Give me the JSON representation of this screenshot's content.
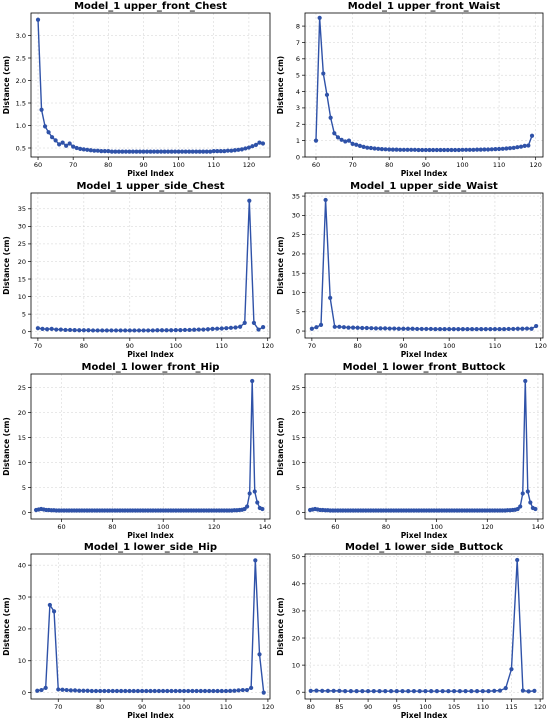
{
  "chart_data": [
    {
      "type": "line",
      "title": "Model_1 upper_front_Chest",
      "xlabel": "Pixel Index",
      "ylabel": "Distance (cm)",
      "xlim": [
        58,
        126
      ],
      "ylim": [
        0.3,
        3.5
      ],
      "xticks": [
        60,
        70,
        80,
        90,
        100,
        110,
        120
      ],
      "yticks": [
        0.5,
        1.0,
        1.5,
        2.0,
        2.5,
        3.0
      ],
      "ytick_labels": [
        "0.5",
        "1.0",
        "1.5",
        "2.0",
        "2.5",
        "3.0"
      ],
      "grid": true,
      "x": [
        60,
        61,
        62,
        63,
        64,
        65,
        66,
        67,
        68,
        69,
        70,
        71,
        72,
        73,
        74,
        75,
        76,
        77,
        78,
        79,
        80,
        81,
        82,
        83,
        84,
        85,
        86,
        87,
        88,
        89,
        90,
        91,
        92,
        93,
        94,
        95,
        96,
        97,
        98,
        99,
        100,
        101,
        102,
        103,
        104,
        105,
        106,
        107,
        108,
        109,
        110,
        111,
        112,
        113,
        114,
        115,
        116,
        117,
        118,
        119,
        120,
        121,
        122,
        123,
        124
      ],
      "y": [
        3.35,
        1.35,
        0.98,
        0.85,
        0.74,
        0.67,
        0.58,
        0.62,
        0.55,
        0.6,
        0.53,
        0.5,
        0.48,
        0.47,
        0.46,
        0.45,
        0.44,
        0.44,
        0.43,
        0.43,
        0.43,
        0.42,
        0.42,
        0.42,
        0.42,
        0.42,
        0.42,
        0.42,
        0.42,
        0.42,
        0.42,
        0.42,
        0.42,
        0.42,
        0.42,
        0.42,
        0.42,
        0.42,
        0.42,
        0.42,
        0.42,
        0.42,
        0.42,
        0.42,
        0.42,
        0.42,
        0.42,
        0.42,
        0.42,
        0.42,
        0.43,
        0.43,
        0.43,
        0.43,
        0.44,
        0.44,
        0.45,
        0.46,
        0.47,
        0.49,
        0.51,
        0.54,
        0.57,
        0.62,
        0.6
      ]
    },
    {
      "type": "line",
      "title": "Model_1 upper_front_Waist",
      "xlabel": "Pixel Index",
      "ylabel": "Distance (cm)",
      "xlim": [
        57,
        122
      ],
      "ylim": [
        0,
        8.8
      ],
      "xticks": [
        60,
        70,
        80,
        90,
        100,
        110,
        120
      ],
      "yticks": [
        0,
        1,
        2,
        3,
        4,
        5,
        6,
        7,
        8
      ],
      "ytick_labels": [
        "0",
        "1",
        "2",
        "3",
        "4",
        "5",
        "6",
        "7",
        "8"
      ],
      "grid": true,
      "x": [
        60,
        61,
        62,
        63,
        64,
        65,
        66,
        67,
        68,
        69,
        70,
        71,
        72,
        73,
        74,
        75,
        76,
        77,
        78,
        79,
        80,
        81,
        82,
        83,
        84,
        85,
        86,
        87,
        88,
        89,
        90,
        91,
        92,
        93,
        94,
        95,
        96,
        97,
        98,
        99,
        100,
        101,
        102,
        103,
        104,
        105,
        106,
        107,
        108,
        109,
        110,
        111,
        112,
        113,
        114,
        115,
        116,
        117,
        118,
        119
      ],
      "y": [
        1.0,
        8.5,
        5.1,
        3.8,
        2.4,
        1.45,
        1.2,
        1.05,
        0.95,
        1.0,
        0.8,
        0.75,
        0.68,
        0.62,
        0.57,
        0.55,
        0.52,
        0.5,
        0.48,
        0.47,
        0.46,
        0.45,
        0.45,
        0.44,
        0.44,
        0.44,
        0.44,
        0.44,
        0.43,
        0.43,
        0.43,
        0.43,
        0.43,
        0.43,
        0.43,
        0.43,
        0.43,
        0.43,
        0.43,
        0.43,
        0.44,
        0.44,
        0.44,
        0.44,
        0.45,
        0.45,
        0.46,
        0.46,
        0.47,
        0.48,
        0.49,
        0.5,
        0.52,
        0.54,
        0.56,
        0.6,
        0.63,
        0.68,
        0.7,
        1.3
      ]
    },
    {
      "type": "line",
      "title": "Model_1 upper_side_Chest",
      "xlabel": "Pixel Index",
      "ylabel": "Distance (cm)",
      "xlim": [
        68.5,
        120.5
      ],
      "ylim": [
        -1.8,
        39.5
      ],
      "xticks": [
        70,
        80,
        90,
        100,
        110,
        120
      ],
      "yticks": [
        0,
        5,
        10,
        15,
        20,
        25,
        30,
        35
      ],
      "ytick_labels": [
        "0",
        "5",
        "10",
        "15",
        "20",
        "25",
        "30",
        "35"
      ],
      "grid": true,
      "x": [
        70,
        71,
        72,
        73,
        74,
        75,
        76,
        77,
        78,
        79,
        80,
        81,
        82,
        83,
        84,
        85,
        86,
        87,
        88,
        89,
        90,
        91,
        92,
        93,
        94,
        95,
        96,
        97,
        98,
        99,
        100,
        101,
        102,
        103,
        104,
        105,
        106,
        107,
        108,
        109,
        110,
        111,
        112,
        113,
        114,
        115,
        116,
        117,
        118,
        119
      ],
      "y": [
        1.0,
        0.8,
        0.7,
        0.8,
        0.6,
        0.6,
        0.5,
        0.5,
        0.45,
        0.4,
        0.4,
        0.4,
        0.35,
        0.35,
        0.35,
        0.35,
        0.35,
        0.35,
        0.35,
        0.35,
        0.35,
        0.35,
        0.35,
        0.35,
        0.35,
        0.35,
        0.4,
        0.4,
        0.4,
        0.4,
        0.45,
        0.45,
        0.5,
        0.5,
        0.55,
        0.6,
        0.6,
        0.7,
        0.8,
        0.85,
        0.9,
        1.0,
        1.1,
        1.2,
        1.4,
        2.5,
        37.3,
        2.5,
        0.6,
        1.3
      ]
    },
    {
      "type": "line",
      "title": "Model_1 upper_side_Waist",
      "xlabel": "Pixel Index",
      "ylabel": "Distance (cm)",
      "xlim": [
        68.5,
        120.5
      ],
      "ylim": [
        -1.8,
        35.8
      ],
      "xticks": [
        70,
        80,
        90,
        100,
        110,
        120
      ],
      "yticks": [
        0,
        5,
        10,
        15,
        20,
        25,
        30,
        35
      ],
      "ytick_labels": [
        "0",
        "5",
        "10",
        "15",
        "20",
        "25",
        "30",
        "35"
      ],
      "grid": true,
      "x": [
        70,
        71,
        72,
        73,
        74,
        75,
        76,
        77,
        78,
        79,
        80,
        81,
        82,
        83,
        84,
        85,
        86,
        87,
        88,
        89,
        90,
        91,
        92,
        93,
        94,
        95,
        96,
        97,
        98,
        99,
        100,
        101,
        102,
        103,
        104,
        105,
        106,
        107,
        108,
        109,
        110,
        111,
        112,
        113,
        114,
        115,
        116,
        117,
        118,
        119
      ],
      "y": [
        0.6,
        1.0,
        1.6,
        34.0,
        8.6,
        1.1,
        1.1,
        1.0,
        0.9,
        0.9,
        0.85,
        0.8,
        0.8,
        0.75,
        0.7,
        0.7,
        0.7,
        0.65,
        0.65,
        0.6,
        0.6,
        0.6,
        0.6,
        0.55,
        0.55,
        0.55,
        0.55,
        0.5,
        0.5,
        0.5,
        0.5,
        0.5,
        0.5,
        0.5,
        0.5,
        0.5,
        0.5,
        0.5,
        0.5,
        0.5,
        0.5,
        0.5,
        0.5,
        0.55,
        0.55,
        0.6,
        0.6,
        0.65,
        0.6,
        1.3
      ]
    },
    {
      "type": "line",
      "title": "Model_1 lower_front_Hip",
      "xlabel": "Pixel Index",
      "ylabel": "Distance (cm)",
      "xlim": [
        48,
        142
      ],
      "ylim": [
        -1.3,
        27.7
      ],
      "xticks": [
        60,
        80,
        100,
        120,
        140
      ],
      "yticks": [
        0,
        5,
        10,
        15,
        20,
        25
      ],
      "ytick_labels": [
        "0",
        "5",
        "10",
        "15",
        "20",
        "25"
      ],
      "grid": true,
      "x": [
        50,
        51,
        52,
        53,
        54,
        55,
        56,
        57,
        58,
        59,
        60,
        61,
        62,
        63,
        64,
        65,
        66,
        67,
        68,
        69,
        70,
        71,
        72,
        73,
        74,
        75,
        76,
        77,
        78,
        79,
        80,
        81,
        82,
        83,
        84,
        85,
        86,
        87,
        88,
        89,
        90,
        91,
        92,
        93,
        94,
        95,
        96,
        97,
        98,
        99,
        100,
        101,
        102,
        103,
        104,
        105,
        106,
        107,
        108,
        109,
        110,
        111,
        112,
        113,
        114,
        115,
        116,
        117,
        118,
        119,
        120,
        121,
        122,
        123,
        124,
        125,
        126,
        127,
        128,
        129,
        130,
        131,
        132,
        133,
        134,
        135,
        136,
        137,
        138,
        139
      ],
      "y": [
        0.5,
        0.6,
        0.7,
        0.6,
        0.5,
        0.5,
        0.45,
        0.45,
        0.4,
        0.4,
        0.4,
        0.4,
        0.4,
        0.4,
        0.4,
        0.4,
        0.4,
        0.4,
        0.4,
        0.4,
        0.4,
        0.4,
        0.4,
        0.4,
        0.4,
        0.4,
        0.4,
        0.4,
        0.4,
        0.4,
        0.4,
        0.4,
        0.4,
        0.4,
        0.4,
        0.4,
        0.4,
        0.4,
        0.4,
        0.4,
        0.4,
        0.4,
        0.4,
        0.4,
        0.4,
        0.4,
        0.4,
        0.4,
        0.4,
        0.4,
        0.4,
        0.4,
        0.4,
        0.4,
        0.4,
        0.4,
        0.4,
        0.4,
        0.4,
        0.4,
        0.4,
        0.4,
        0.4,
        0.4,
        0.4,
        0.4,
        0.4,
        0.4,
        0.4,
        0.4,
        0.4,
        0.4,
        0.4,
        0.4,
        0.4,
        0.4,
        0.4,
        0.4,
        0.45,
        0.45,
        0.5,
        0.55,
        0.7,
        1.2,
        3.8,
        26.3,
        4.2,
        2.0,
        0.9,
        0.7
      ]
    },
    {
      "type": "line",
      "title": "Model_1 lower_front_Buttock",
      "xlabel": "Pixel Index",
      "ylabel": "Distance (cm)",
      "xlim": [
        48,
        142
      ],
      "ylim": [
        -1.3,
        27.7
      ],
      "xticks": [
        60,
        80,
        100,
        120,
        140
      ],
      "yticks": [
        0,
        5,
        10,
        15,
        20,
        25
      ],
      "ytick_labels": [
        "0",
        "5",
        "10",
        "15",
        "20",
        "25"
      ],
      "grid": true,
      "x": [
        50,
        51,
        52,
        53,
        54,
        55,
        56,
        57,
        58,
        59,
        60,
        61,
        62,
        63,
        64,
        65,
        66,
        67,
        68,
        69,
        70,
        71,
        72,
        73,
        74,
        75,
        76,
        77,
        78,
        79,
        80,
        81,
        82,
        83,
        84,
        85,
        86,
        87,
        88,
        89,
        90,
        91,
        92,
        93,
        94,
        95,
        96,
        97,
        98,
        99,
        100,
        101,
        102,
        103,
        104,
        105,
        106,
        107,
        108,
        109,
        110,
        111,
        112,
        113,
        114,
        115,
        116,
        117,
        118,
        119,
        120,
        121,
        122,
        123,
        124,
        125,
        126,
        127,
        128,
        129,
        130,
        131,
        132,
        133,
        134,
        135,
        136,
        137,
        138,
        139
      ],
      "y": [
        0.5,
        0.6,
        0.7,
        0.6,
        0.5,
        0.5,
        0.45,
        0.45,
        0.4,
        0.4,
        0.4,
        0.4,
        0.4,
        0.4,
        0.4,
        0.4,
        0.4,
        0.4,
        0.4,
        0.4,
        0.4,
        0.4,
        0.4,
        0.4,
        0.4,
        0.4,
        0.4,
        0.4,
        0.4,
        0.4,
        0.4,
        0.4,
        0.4,
        0.4,
        0.4,
        0.4,
        0.4,
        0.4,
        0.4,
        0.4,
        0.4,
        0.4,
        0.4,
        0.4,
        0.4,
        0.4,
        0.4,
        0.4,
        0.4,
        0.4,
        0.4,
        0.4,
        0.4,
        0.4,
        0.4,
        0.4,
        0.4,
        0.4,
        0.4,
        0.4,
        0.4,
        0.4,
        0.4,
        0.4,
        0.4,
        0.4,
        0.4,
        0.4,
        0.4,
        0.4,
        0.4,
        0.4,
        0.4,
        0.4,
        0.4,
        0.4,
        0.4,
        0.4,
        0.45,
        0.45,
        0.5,
        0.55,
        0.7,
        1.2,
        3.8,
        26.3,
        4.2,
        2.0,
        0.9,
        0.7
      ]
    },
    {
      "type": "line",
      "title": "Model_1 lower_side_Hip",
      "xlabel": "Pixel Index",
      "ylabel": "Distance (cm)",
      "xlim": [
        63.5,
        120.5
      ],
      "ylim": [
        -2.0,
        43.5
      ],
      "xticks": [
        70,
        80,
        90,
        100,
        110,
        120
      ],
      "yticks": [
        0,
        10,
        20,
        30,
        40
      ],
      "ytick_labels": [
        "0",
        "10",
        "20",
        "30",
        "40"
      ],
      "grid": true,
      "x": [
        65,
        66,
        67,
        68,
        69,
        70,
        71,
        72,
        73,
        74,
        75,
        76,
        77,
        78,
        79,
        80,
        81,
        82,
        83,
        84,
        85,
        86,
        87,
        88,
        89,
        90,
        91,
        92,
        93,
        94,
        95,
        96,
        97,
        98,
        99,
        100,
        101,
        102,
        103,
        104,
        105,
        106,
        107,
        108,
        109,
        110,
        111,
        112,
        113,
        114,
        115,
        116,
        117,
        118,
        119
      ],
      "y": [
        0.6,
        0.8,
        1.5,
        27.5,
        25.5,
        1.0,
        0.9,
        0.8,
        0.7,
        0.7,
        0.6,
        0.6,
        0.6,
        0.5,
        0.5,
        0.5,
        0.5,
        0.5,
        0.5,
        0.5,
        0.5,
        0.5,
        0.5,
        0.5,
        0.5,
        0.5,
        0.5,
        0.5,
        0.5,
        0.5,
        0.5,
        0.5,
        0.5,
        0.5,
        0.5,
        0.5,
        0.5,
        0.5,
        0.5,
        0.5,
        0.5,
        0.5,
        0.5,
        0.5,
        0.5,
        0.5,
        0.55,
        0.6,
        0.7,
        0.8,
        0.8,
        1.5,
        41.5,
        12.0,
        0
      ]
    },
    {
      "type": "line",
      "title": "Model_1 lower_side_Buttock",
      "xlabel": "Pixel Index",
      "ylabel": "Distance (cm)",
      "xlim": [
        79,
        120.5
      ],
      "ylim": [
        -2.5,
        51.0
      ],
      "xticks": [
        80,
        85,
        90,
        95,
        100,
        105,
        110,
        115,
        120
      ],
      "yticks": [
        0,
        10,
        20,
        30,
        40,
        50
      ],
      "ytick_labels": [
        "0",
        "10",
        "20",
        "30",
        "40",
        "50"
      ],
      "grid": true,
      "x": [
        80,
        81,
        82,
        83,
        84,
        85,
        86,
        87,
        88,
        89,
        90,
        91,
        92,
        93,
        94,
        95,
        96,
        97,
        98,
        99,
        100,
        101,
        102,
        103,
        104,
        105,
        106,
        107,
        108,
        109,
        110,
        111,
        112,
        113,
        114,
        115,
        116,
        117,
        118,
        119
      ],
      "y": [
        0.5,
        0.6,
        0.5,
        0.5,
        0.5,
        0.5,
        0.4,
        0.4,
        0.4,
        0.4,
        0.4,
        0.4,
        0.4,
        0.4,
        0.4,
        0.4,
        0.4,
        0.4,
        0.4,
        0.4,
        0.4,
        0.4,
        0.4,
        0.4,
        0.4,
        0.4,
        0.4,
        0.4,
        0.4,
        0.4,
        0.4,
        0.4,
        0.5,
        0.6,
        1.5,
        8.5,
        48.8,
        0.6,
        0.3,
        0.5
      ]
    }
  ]
}
